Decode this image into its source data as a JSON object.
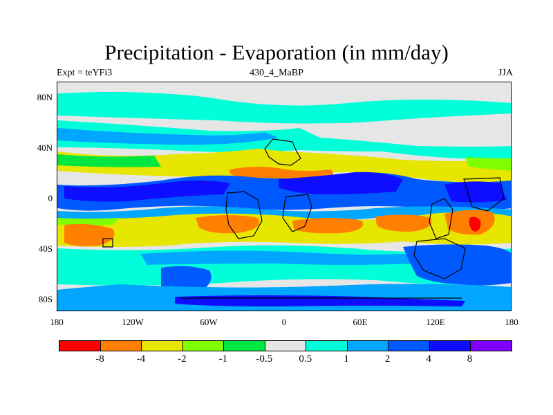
{
  "title": "Precipitation - Evaporation (in mm/day)",
  "subtitle_left": "Expt = teYFi3",
  "subtitle_center": "430_4_MaBP",
  "subtitle_right": "JJA",
  "y_axis_labels": [
    "80N",
    "40N",
    "0",
    "40S",
    "80S"
  ],
  "x_axis_labels": [
    "180",
    "120W",
    "60W",
    "0",
    "60E",
    "120E",
    "180"
  ],
  "colorbar": {
    "colors": [
      "#ff0000",
      "#ff8000",
      "#e6e600",
      "#80ff00",
      "#00e640",
      "#e6e6e6",
      "#00ffd9",
      "#00a6ff",
      "#0059ff",
      "#0d0dff",
      "#8000ff"
    ],
    "labels": [
      "-8",
      "-4",
      "-2",
      "-1",
      "-0.5",
      "0.5",
      "1",
      "2",
      "4",
      "8"
    ]
  }
}
